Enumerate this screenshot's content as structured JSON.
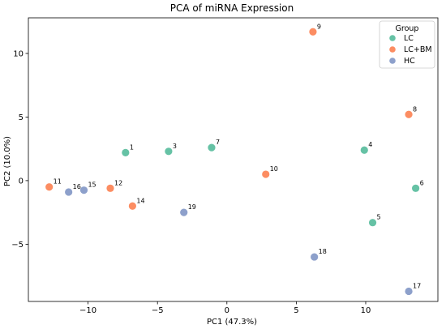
{
  "chart_data": {
    "type": "scatter",
    "title": "PCA of miRNA Expression",
    "xlabel": "PC1 (47.3%)",
    "ylabel": "PC2 (10.0%)",
    "xlim": [
      -14.3,
      15.2
    ],
    "ylim": [
      -9.5,
      12.8
    ],
    "xticks": [
      -10,
      -5,
      0,
      5,
      10
    ],
    "yticks": [
      -5,
      0,
      5,
      10
    ],
    "grid": false,
    "legend_title": "Group",
    "legend_position": "top-right",
    "series": [
      {
        "name": "LC",
        "color": "#66c2a5",
        "points": [
          {
            "label": "1",
            "x": -7.3,
            "y": 2.2
          },
          {
            "label": "3",
            "x": -4.2,
            "y": 2.3
          },
          {
            "label": "7",
            "x": -1.1,
            "y": 2.6
          },
          {
            "label": "4",
            "x": 9.9,
            "y": 2.4
          },
          {
            "label": "6",
            "x": 13.6,
            "y": -0.6
          },
          {
            "label": "5",
            "x": 10.5,
            "y": -3.3
          }
        ]
      },
      {
        "name": "LC+BM",
        "color": "#fc8d62",
        "points": [
          {
            "label": "9",
            "x": 6.2,
            "y": 11.7
          },
          {
            "label": "8",
            "x": 13.1,
            "y": 5.2
          },
          {
            "label": "10",
            "x": 2.8,
            "y": 0.5
          },
          {
            "label": "11",
            "x": -12.8,
            "y": -0.5
          },
          {
            "label": "12",
            "x": -8.4,
            "y": -0.6
          },
          {
            "label": "14",
            "x": -6.8,
            "y": -2.0
          }
        ]
      },
      {
        "name": "HC",
        "color": "#8da0cb",
        "points": [
          {
            "label": "16",
            "x": -11.4,
            "y": -0.9
          },
          {
            "label": "15",
            "x": -10.3,
            "y": -0.75
          },
          {
            "label": "19",
            "x": -3.1,
            "y": -2.5
          },
          {
            "label": "18",
            "x": 6.3,
            "y": -6.0
          },
          {
            "label": "17",
            "x": 13.1,
            "y": -8.7
          }
        ]
      }
    ]
  }
}
